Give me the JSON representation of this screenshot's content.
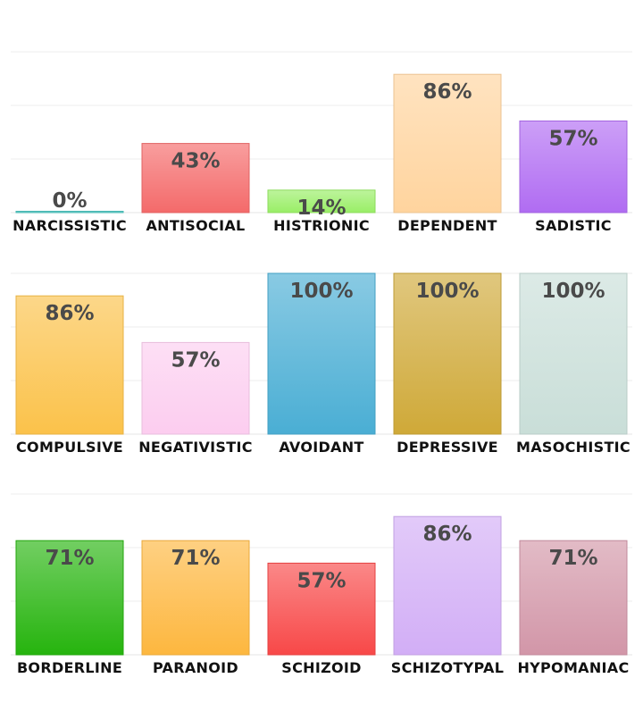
{
  "chart_data": [
    {
      "type": "bar",
      "categories": [
        "NARCISSISTIC",
        "ANTISOCIAL",
        "HISTRIONIC",
        "DEPENDENT",
        "SADISTIC"
      ],
      "values": [
        0,
        43,
        14,
        86,
        57
      ],
      "labels": [
        "0%",
        "43%",
        "14%",
        "86%",
        "57%"
      ],
      "colors": [
        "#4fc7c1",
        "#f46a6a",
        "#99ee66",
        "#ffd49e",
        "#b06cf2"
      ],
      "ylim": [
        0,
        100
      ],
      "grid": true
    },
    {
      "type": "bar",
      "categories": [
        "COMPULSIVE",
        "NEGATIVISTIC",
        "AVOIDANT",
        "DEPRESSIVE",
        "MASOCHISTIC"
      ],
      "values": [
        86,
        57,
        100,
        100,
        100
      ],
      "labels": [
        "86%",
        "57%",
        "100%",
        "100%",
        "100%"
      ],
      "colors": [
        "#fbc24a",
        "#fccdef",
        "#4aaed4",
        "#cfa938",
        "#c9ded8"
      ],
      "ylim": [
        0,
        100
      ],
      "grid": true
    },
    {
      "type": "bar",
      "categories": [
        "BORDERLINE",
        "PARANOID",
        "SCHIZOID",
        "SCHIZOTYPAL",
        "HYPOMANIAC"
      ],
      "values": [
        71,
        71,
        57,
        86,
        71
      ],
      "labels": [
        "71%",
        "71%",
        "57%",
        "86%",
        "71%"
      ],
      "colors": [
        "#26b40e",
        "#fdb73f",
        "#f84848",
        "#d2aef6",
        "#d296a8"
      ],
      "ylim": [
        0,
        100
      ],
      "grid": true
    }
  ]
}
